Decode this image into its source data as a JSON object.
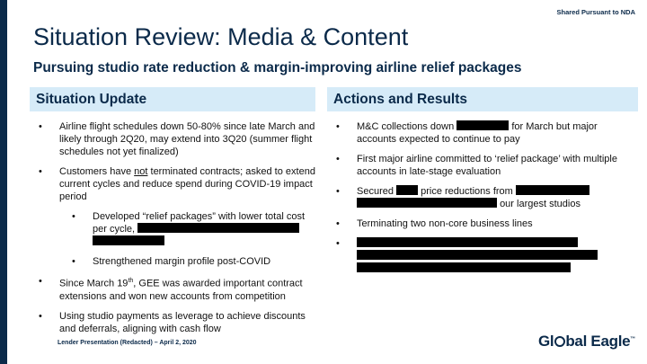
{
  "header": {
    "nda_label": "Shared Pursuant to NDA",
    "title": "Situation Review: Media & Content",
    "subtitle": "Pursuing studio rate reduction & margin-improving airline relief packages"
  },
  "left": {
    "heading": "Situation Update",
    "b1": "Airline flight schedules down 50-80% since late March and likely through 2Q20, may extend into 3Q20 (summer flight schedules not yet finalized)",
    "b2_pre": "Customers have ",
    "b2_not": "not",
    "b2_post": " terminated contracts; asked to extend current cycles and reduce spend during COVID-19 impact period",
    "b3": "Developed “relief packages” with lower total cost per cycle,",
    "b4": "Strengthened margin profile post-COVID",
    "b5_pre": "Since March 19",
    "b5_sup": "th",
    "b5_post": ", GEE was awarded important contract extensions and won new accounts from competition",
    "b6": "Using studio payments as leverage to achieve discounts and deferrals, aligning with cash flow"
  },
  "right": {
    "heading": "Actions and Results",
    "r1_pre": "M&C collections down",
    "r1_post": "for March but major accounts expected to continue to pay",
    "r2": "First major airline committed to ‘relief package’ with multiple accounts in late-stage evaluation",
    "r3_pre": "Secured",
    "r3_mid": "price reductions from",
    "r3_post": "our largest studios",
    "r4": "Terminating two non-core business lines"
  },
  "footer": {
    "left_text": "Lender Presentation (Redacted) – April 2, 2020",
    "logo_pre": "Gl",
    "logo_post": "bal Eagle",
    "logo_tm": "™"
  },
  "colors": {
    "navy": "#0b2a4a",
    "header_band": "#d6ebf8",
    "redaction": "#000000"
  }
}
